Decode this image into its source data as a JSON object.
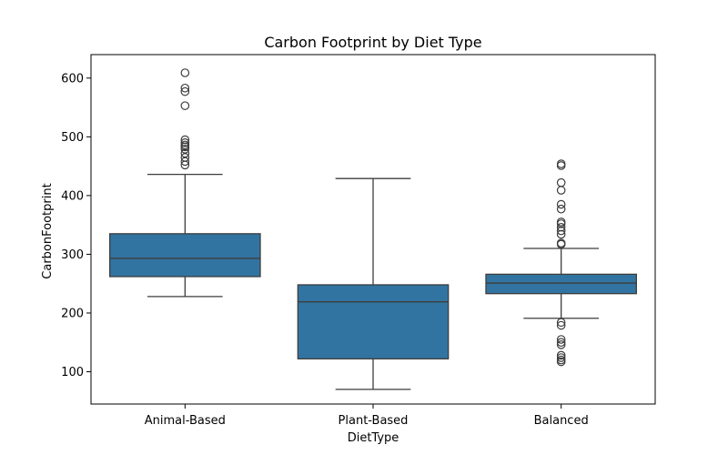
{
  "chart_data": {
    "type": "box",
    "title": "Carbon Footprint by Diet Type",
    "xlabel": "DietType",
    "ylabel": "CarbonFootprint",
    "ylim": [
      45,
      640
    ],
    "yticks": [
      100,
      200,
      300,
      400,
      500,
      600
    ],
    "grid": false,
    "box_color": "#3274a1",
    "line_color": "#3d3d3d",
    "categories": [
      "Animal-Based",
      "Plant-Based",
      "Balanced"
    ],
    "boxes": [
      {
        "category": "Animal-Based",
        "whisker_low": 228,
        "q1": 262,
        "median": 293,
        "q3": 335,
        "whisker_high": 436,
        "outliers": [
          452,
          458,
          465,
          472,
          479,
          483,
          486,
          490,
          495,
          553,
          577,
          583,
          609
        ]
      },
      {
        "category": "Plant-Based",
        "whisker_low": 70,
        "q1": 122,
        "median": 219,
        "q3": 248,
        "whisker_high": 429,
        "outliers": []
      },
      {
        "category": "Balanced",
        "whisker_low": 191,
        "q1": 233,
        "median": 251,
        "q3": 266,
        "whisker_high": 310,
        "outliers": [
          117,
          120,
          124,
          128,
          146,
          150,
          155,
          179,
          184,
          317,
          319,
          334,
          340,
          346,
          352,
          355,
          377,
          385,
          409,
          422,
          451,
          454
        ]
      }
    ]
  }
}
